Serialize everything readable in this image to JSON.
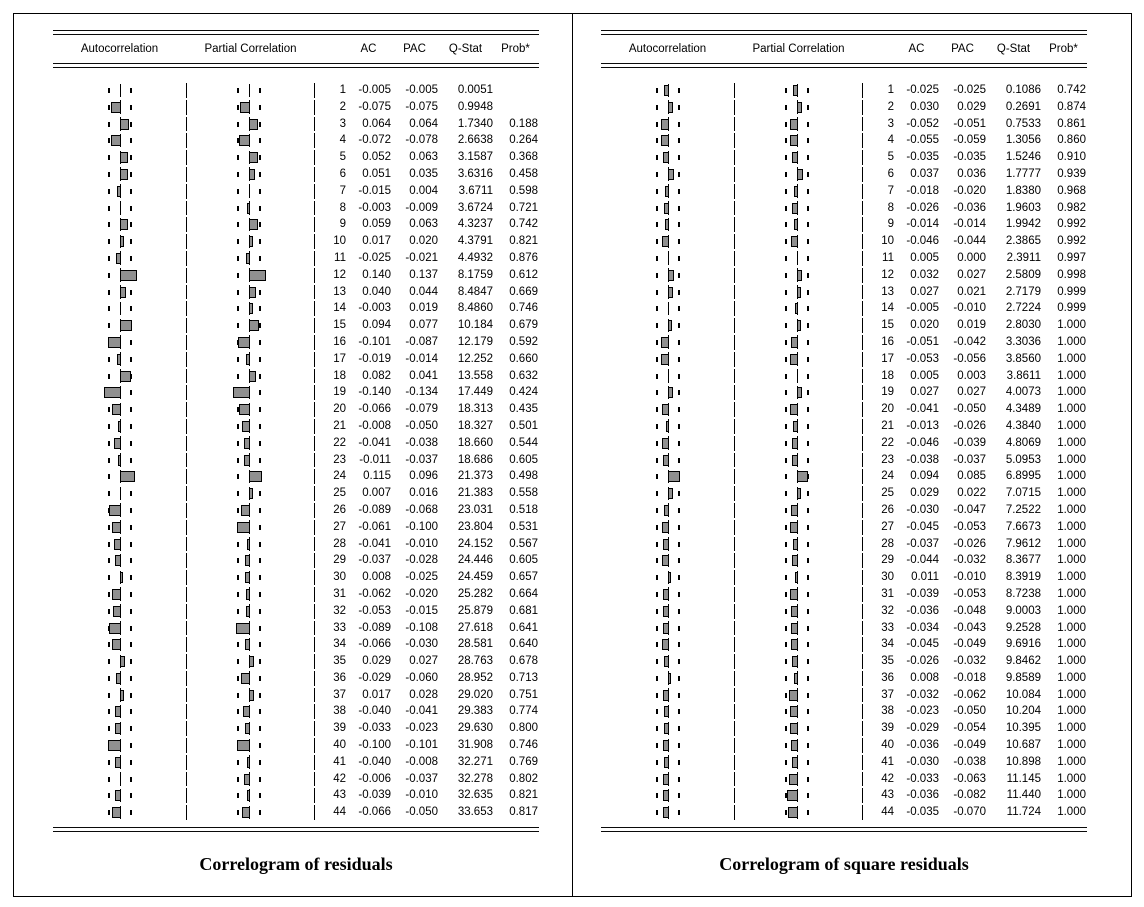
{
  "columns": {
    "autocorrelation": "Autocorrelation",
    "partial_correlation": "Partial Correlation",
    "ac": "AC",
    "pac": "PAC",
    "qstat": "Q-Stat",
    "prob": "Prob*"
  },
  "colors": {
    "bar_fill": "#909090",
    "bar_border": "#000000",
    "rule": "#000000",
    "background": "#ffffff"
  },
  "chart_data": [
    {
      "type": "correlogram",
      "title": "Correlogram of residuals",
      "columns": [
        "lag",
        "AC",
        "PAC",
        "Q-Stat",
        "Prob*"
      ],
      "legend_position": "none",
      "grid": false,
      "bar_axis_range": [
        -0.2,
        0.2
      ],
      "rows": [
        [
          "1",
          "-0.005",
          "-0.005",
          "0.0051",
          ""
        ],
        [
          "2",
          "-0.075",
          "-0.075",
          "0.9948",
          ""
        ],
        [
          "3",
          "0.064",
          "0.064",
          "1.7340",
          "0.188"
        ],
        [
          "4",
          "-0.072",
          "-0.078",
          "2.6638",
          "0.264"
        ],
        [
          "5",
          "0.052",
          "0.063",
          "3.1587",
          "0.368"
        ],
        [
          "6",
          "0.051",
          "0.035",
          "3.6316",
          "0.458"
        ],
        [
          "7",
          "-0.015",
          "0.004",
          "3.6711",
          "0.598"
        ],
        [
          "8",
          "-0.003",
          "-0.009",
          "3.6724",
          "0.721"
        ],
        [
          "9",
          "0.059",
          "0.063",
          "4.3237",
          "0.742"
        ],
        [
          "10",
          "0.017",
          "0.020",
          "4.3791",
          "0.821"
        ],
        [
          "11",
          "-0.025",
          "-0.021",
          "4.4932",
          "0.876"
        ],
        [
          "12",
          "0.140",
          "0.137",
          "8.1759",
          "0.612"
        ],
        [
          "13",
          "0.040",
          "0.044",
          "8.4847",
          "0.669"
        ],
        [
          "14",
          "-0.003",
          "0.019",
          "8.4860",
          "0.746"
        ],
        [
          "15",
          "0.094",
          "0.077",
          "10.184",
          "0.679"
        ],
        [
          "16",
          "-0.101",
          "-0.087",
          "12.179",
          "0.592"
        ],
        [
          "17",
          "-0.019",
          "-0.014",
          "12.252",
          "0.660"
        ],
        [
          "18",
          "0.082",
          "0.041",
          "13.558",
          "0.632"
        ],
        [
          "19",
          "-0.140",
          "-0.134",
          "17.449",
          "0.424"
        ],
        [
          "20",
          "-0.066",
          "-0.079",
          "18.313",
          "0.435"
        ],
        [
          "21",
          "-0.008",
          "-0.050",
          "18.327",
          "0.501"
        ],
        [
          "22",
          "-0.041",
          "-0.038",
          "18.660",
          "0.544"
        ],
        [
          "23",
          "-0.011",
          "-0.037",
          "18.686",
          "0.605"
        ],
        [
          "24",
          "0.115",
          "0.096",
          "21.373",
          "0.498"
        ],
        [
          "25",
          "0.007",
          "0.016",
          "21.383",
          "0.558"
        ],
        [
          "26",
          "-0.089",
          "-0.068",
          "23.031",
          "0.518"
        ],
        [
          "27",
          "-0.061",
          "-0.100",
          "23.804",
          "0.531"
        ],
        [
          "28",
          "-0.041",
          "-0.010",
          "24.152",
          "0.567"
        ],
        [
          "29",
          "-0.037",
          "-0.028",
          "24.446",
          "0.605"
        ],
        [
          "30",
          "0.008",
          "-0.025",
          "24.459",
          "0.657"
        ],
        [
          "31",
          "-0.062",
          "-0.020",
          "25.282",
          "0.664"
        ],
        [
          "32",
          "-0.053",
          "-0.015",
          "25.879",
          "0.681"
        ],
        [
          "33",
          "-0.089",
          "-0.108",
          "27.618",
          "0.641"
        ],
        [
          "34",
          "-0.066",
          "-0.030",
          "28.581",
          "0.640"
        ],
        [
          "35",
          "0.029",
          "0.027",
          "28.763",
          "0.678"
        ],
        [
          "36",
          "-0.029",
          "-0.060",
          "28.952",
          "0.713"
        ],
        [
          "37",
          "0.017",
          "0.028",
          "29.020",
          "0.751"
        ],
        [
          "38",
          "-0.040",
          "-0.041",
          "29.383",
          "0.774"
        ],
        [
          "39",
          "-0.033",
          "-0.023",
          "29.630",
          "0.800"
        ],
        [
          "40",
          "-0.100",
          "-0.101",
          "31.908",
          "0.746"
        ],
        [
          "41",
          "-0.040",
          "-0.008",
          "32.271",
          "0.769"
        ],
        [
          "42",
          "-0.006",
          "-0.037",
          "32.278",
          "0.802"
        ],
        [
          "43",
          "-0.039",
          "-0.010",
          "32.635",
          "0.821"
        ],
        [
          "44",
          "-0.066",
          "-0.050",
          "33.653",
          "0.817"
        ]
      ]
    },
    {
      "type": "correlogram",
      "title": "Correlogram of square residuals",
      "columns": [
        "lag",
        "AC",
        "PAC",
        "Q-Stat",
        "Prob*"
      ],
      "legend_position": "none",
      "grid": false,
      "bar_axis_range": [
        -0.2,
        0.2
      ],
      "rows": [
        [
          "1",
          "-0.025",
          "-0.025",
          "0.1086",
          "0.742"
        ],
        [
          "2",
          "0.030",
          "0.029",
          "0.2691",
          "0.874"
        ],
        [
          "3",
          "-0.052",
          "-0.051",
          "0.7533",
          "0.861"
        ],
        [
          "4",
          "-0.055",
          "-0.059",
          "1.3056",
          "0.860"
        ],
        [
          "5",
          "-0.035",
          "-0.035",
          "1.5246",
          "0.910"
        ],
        [
          "6",
          "0.037",
          "0.036",
          "1.7777",
          "0.939"
        ],
        [
          "7",
          "-0.018",
          "-0.020",
          "1.8380",
          "0.968"
        ],
        [
          "8",
          "-0.026",
          "-0.036",
          "1.9603",
          "0.982"
        ],
        [
          "9",
          "-0.014",
          "-0.014",
          "1.9942",
          "0.992"
        ],
        [
          "10",
          "-0.046",
          "-0.044",
          "2.3865",
          "0.992"
        ],
        [
          "11",
          "0.005",
          "0.000",
          "2.3911",
          "0.997"
        ],
        [
          "12",
          "0.032",
          "0.027",
          "2.5809",
          "0.998"
        ],
        [
          "13",
          "0.027",
          "0.021",
          "2.7179",
          "0.999"
        ],
        [
          "14",
          "-0.005",
          "-0.010",
          "2.7224",
          "0.999"
        ],
        [
          "15",
          "0.020",
          "0.019",
          "2.8030",
          "1.000"
        ],
        [
          "16",
          "-0.051",
          "-0.042",
          "3.3036",
          "1.000"
        ],
        [
          "17",
          "-0.053",
          "-0.056",
          "3.8560",
          "1.000"
        ],
        [
          "18",
          "0.005",
          "0.003",
          "3.8611",
          "1.000"
        ],
        [
          "19",
          "0.027",
          "0.027",
          "4.0073",
          "1.000"
        ],
        [
          "20",
          "-0.041",
          "-0.050",
          "4.3489",
          "1.000"
        ],
        [
          "21",
          "-0.013",
          "-0.026",
          "4.3840",
          "1.000"
        ],
        [
          "22",
          "-0.046",
          "-0.039",
          "4.8069",
          "1.000"
        ],
        [
          "23",
          "-0.038",
          "-0.037",
          "5.0953",
          "1.000"
        ],
        [
          "24",
          "0.094",
          "0.085",
          "6.8995",
          "1.000"
        ],
        [
          "25",
          "0.029",
          "0.022",
          "7.0715",
          "1.000"
        ],
        [
          "26",
          "-0.030",
          "-0.047",
          "7.2522",
          "1.000"
        ],
        [
          "27",
          "-0.045",
          "-0.053",
          "7.6673",
          "1.000"
        ],
        [
          "28",
          "-0.037",
          "-0.026",
          "7.9612",
          "1.000"
        ],
        [
          "29",
          "-0.044",
          "-0.032",
          "8.3677",
          "1.000"
        ],
        [
          "30",
          "0.011",
          "-0.010",
          "8.3919",
          "1.000"
        ],
        [
          "31",
          "-0.039",
          "-0.053",
          "8.7238",
          "1.000"
        ],
        [
          "32",
          "-0.036",
          "-0.048",
          "9.0003",
          "1.000"
        ],
        [
          "33",
          "-0.034",
          "-0.043",
          "9.2528",
          "1.000"
        ],
        [
          "34",
          "-0.045",
          "-0.049",
          "9.6916",
          "1.000"
        ],
        [
          "35",
          "-0.026",
          "-0.032",
          "9.8462",
          "1.000"
        ],
        [
          "36",
          "0.008",
          "-0.018",
          "9.8589",
          "1.000"
        ],
        [
          "37",
          "-0.032",
          "-0.062",
          "10.084",
          "1.000"
        ],
        [
          "38",
          "-0.023",
          "-0.050",
          "10.204",
          "1.000"
        ],
        [
          "39",
          "-0.029",
          "-0.054",
          "10.395",
          "1.000"
        ],
        [
          "40",
          "-0.036",
          "-0.049",
          "10.687",
          "1.000"
        ],
        [
          "41",
          "-0.030",
          "-0.038",
          "10.898",
          "1.000"
        ],
        [
          "42",
          "-0.033",
          "-0.063",
          "11.145",
          "1.000"
        ],
        [
          "43",
          "-0.036",
          "-0.082",
          "11.440",
          "1.000"
        ],
        [
          "44",
          "-0.035",
          "-0.070",
          "11.724",
          "1.000"
        ]
      ]
    }
  ]
}
